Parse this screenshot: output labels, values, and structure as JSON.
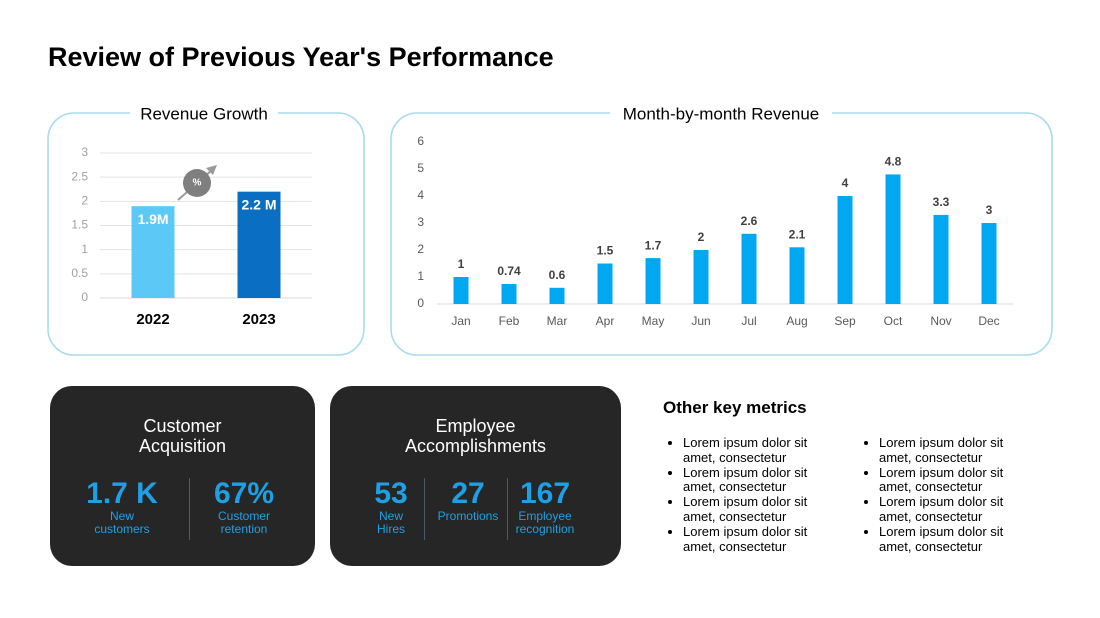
{
  "title": "Review of Previous Year's Performance",
  "chart_data": [
    {
      "type": "bar",
      "title": "Revenue Growth",
      "annotation": "%",
      "categories": [
        "2022",
        "2023"
      ],
      "values": [
        1.9,
        2.2
      ],
      "value_labels": [
        "1.9M",
        "2.2 M"
      ],
      "colors": [
        "#5bc8f5",
        "#0a6fc2"
      ],
      "ylim": [
        0,
        3
      ],
      "yticks": [
        0,
        0.5,
        1,
        1.5,
        2,
        2.5,
        3
      ],
      "grid": true
    },
    {
      "type": "bar",
      "title": "Month-by-month Revenue",
      "categories": [
        "Jan",
        "Feb",
        "Mar",
        "Apr",
        "May",
        "Jun",
        "Jul",
        "Aug",
        "Sep",
        "Oct",
        "Nov",
        "Dec"
      ],
      "values": [
        1,
        0.74,
        0.6,
        1.5,
        1.7,
        2,
        2.6,
        2.1,
        4,
        4.8,
        3.3,
        3
      ],
      "color": "#00a9ef",
      "ylim": [
        0,
        6
      ],
      "yticks": [
        0,
        1,
        2,
        3,
        4,
        5,
        6
      ],
      "grid": false
    }
  ],
  "cards": [
    {
      "title": "Customer Acquisition",
      "metrics": [
        {
          "value": "1.7 K",
          "label": "New customers"
        },
        {
          "value": "67%",
          "label": "Customer retention"
        }
      ]
    },
    {
      "title": "Employee Accomplishments",
      "metrics": [
        {
          "value": "53",
          "label": "New Hires"
        },
        {
          "value": "27",
          "label": "Promotions"
        },
        {
          "value": "167",
          "label": "Employee recognition"
        }
      ]
    }
  ],
  "other_metrics": {
    "heading": "Other key metrics",
    "columns": [
      [
        "Lorem ipsum dolor sit amet, consectetur",
        "Lorem ipsum dolor sit amet, consectetur",
        "Lorem ipsum dolor sit amet, consectetur",
        "Lorem ipsum dolor sit amet, consectetur"
      ],
      [
        "Lorem ipsum dolor sit amet, consectetur",
        "Lorem ipsum dolor sit amet, consectetur",
        "Lorem ipsum dolor sit amet, consectetur",
        "Lorem ipsum dolor sit amet, consectetur"
      ]
    ]
  }
}
